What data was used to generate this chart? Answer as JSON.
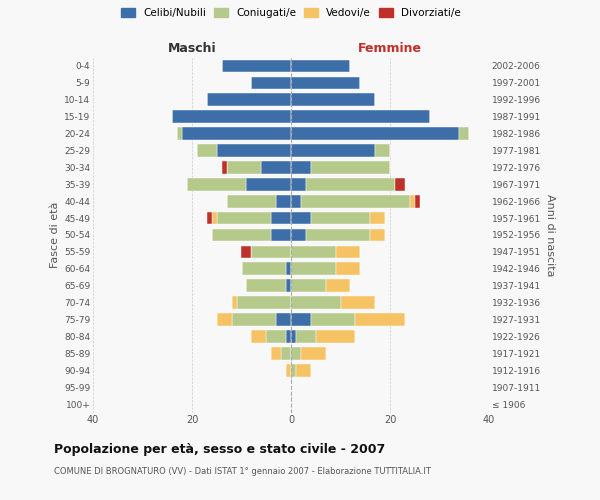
{
  "age_groups": [
    "100+",
    "95-99",
    "90-94",
    "85-89",
    "80-84",
    "75-79",
    "70-74",
    "65-69",
    "60-64",
    "55-59",
    "50-54",
    "45-49",
    "40-44",
    "35-39",
    "30-34",
    "25-29",
    "20-24",
    "15-19",
    "10-14",
    "5-9",
    "0-4"
  ],
  "birth_years": [
    "≤ 1906",
    "1907-1911",
    "1912-1916",
    "1917-1921",
    "1922-1926",
    "1927-1931",
    "1932-1936",
    "1937-1941",
    "1942-1946",
    "1947-1951",
    "1952-1956",
    "1957-1961",
    "1962-1966",
    "1967-1971",
    "1972-1976",
    "1977-1981",
    "1982-1986",
    "1987-1991",
    "1992-1996",
    "1997-2001",
    "2002-2006"
  ],
  "maschi": {
    "celibi": [
      0,
      0,
      0,
      0,
      1,
      3,
      0,
      1,
      1,
      0,
      4,
      4,
      3,
      9,
      6,
      15,
      22,
      24,
      17,
      8,
      14
    ],
    "coniugati": [
      0,
      0,
      0,
      2,
      4,
      9,
      11,
      8,
      9,
      8,
      12,
      11,
      10,
      12,
      7,
      4,
      1,
      0,
      0,
      0,
      0
    ],
    "vedovi": [
      0,
      0,
      1,
      2,
      3,
      3,
      1,
      0,
      0,
      0,
      0,
      1,
      0,
      0,
      0,
      0,
      0,
      0,
      0,
      0,
      0
    ],
    "divorziati": [
      0,
      0,
      0,
      0,
      0,
      0,
      0,
      0,
      0,
      2,
      0,
      1,
      0,
      0,
      1,
      0,
      0,
      0,
      0,
      0,
      0
    ]
  },
  "femmine": {
    "nubili": [
      0,
      0,
      0,
      0,
      1,
      4,
      0,
      0,
      0,
      0,
      3,
      4,
      2,
      3,
      4,
      17,
      34,
      28,
      17,
      14,
      12
    ],
    "coniugate": [
      0,
      0,
      1,
      2,
      4,
      9,
      10,
      7,
      9,
      9,
      13,
      12,
      22,
      18,
      16,
      3,
      2,
      0,
      0,
      0,
      0
    ],
    "vedove": [
      0,
      0,
      3,
      5,
      8,
      10,
      7,
      5,
      5,
      5,
      3,
      3,
      1,
      0,
      0,
      0,
      0,
      0,
      0,
      0,
      0
    ],
    "divorziate": [
      0,
      0,
      0,
      0,
      0,
      0,
      0,
      0,
      0,
      0,
      0,
      0,
      1,
      2,
      0,
      0,
      0,
      0,
      0,
      0,
      0
    ]
  },
  "colors": {
    "celibi_nubili": "#3d6ea8",
    "coniugati": "#b5c98a",
    "vedovi": "#f5c264",
    "divorziati": "#c0302a"
  },
  "xlim": 40,
  "title": "Popolazione per età, sesso e stato civile - 2007",
  "subtitle": "COMUNE DI BROGNATURO (VV) - Dati ISTAT 1° gennaio 2007 - Elaborazione TUTTITALIA.IT",
  "ylabel_left": "Fasce di età",
  "ylabel_right": "Anni di nascita",
  "xlabel_left": "Maschi",
  "xlabel_right": "Femmine",
  "bg_color": "#f8f8f8",
  "bar_height": 0.75
}
